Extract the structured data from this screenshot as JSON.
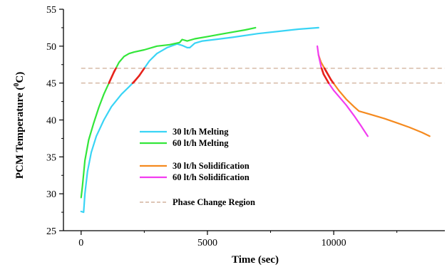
{
  "chart_data": {
    "type": "line",
    "title": "",
    "xlabel": "Time (sec)",
    "ylabel_parts": [
      "PCM Temperature (",
      "0",
      "C)"
    ],
    "xlim": [
      -700,
      14400
    ],
    "ylim": [
      25,
      55
    ],
    "x_ticks": [
      0,
      5000,
      10000
    ],
    "y_ticks": [
      25,
      30,
      35,
      40,
      45,
      50,
      55
    ],
    "grid": false,
    "legend_position": "center",
    "phase_change_region": [
      45,
      47
    ],
    "phase_change_color": "#c9a48a",
    "highlight_color": "#e8221b",
    "series": [
      {
        "name": "30 lt/h Melting",
        "color": "#39d4f5",
        "x": [
          0,
          100,
          150,
          250,
          400,
          600,
          900,
          1200,
          1600,
          1900,
          2100,
          2300,
          2500,
          2700,
          3000,
          3400,
          3800,
          4000,
          4200,
          4300,
          4500,
          4800,
          5300,
          6000,
          7000,
          7800,
          8600,
          9400
        ],
        "y": [
          27.6,
          27.5,
          30,
          33,
          35.6,
          37.8,
          40,
          41.8,
          43.5,
          44.5,
          45.2,
          46,
          47,
          48,
          49,
          49.8,
          50.3,
          50.1,
          49.8,
          49.8,
          50.4,
          50.7,
          50.9,
          51.2,
          51.7,
          52,
          52.3,
          52.5
        ]
      },
      {
        "name": "60 lt/h Melting",
        "color": "#33e63a",
        "x": [
          0,
          50,
          150,
          300,
          500,
          700,
          900,
          1100,
          1300,
          1500,
          1700,
          1900,
          2100,
          2500,
          3000,
          3500,
          3900,
          4000,
          4200,
          4500,
          5000,
          5500,
          6000,
          6500,
          6900
        ],
        "y": [
          29.5,
          31,
          34.5,
          37.3,
          39.6,
          41.7,
          43.5,
          45,
          46.5,
          47.8,
          48.6,
          49,
          49.2,
          49.5,
          50,
          50.2,
          50.5,
          50.9,
          50.7,
          51,
          51.3,
          51.6,
          51.9,
          52.2,
          52.5
        ]
      },
      {
        "name": "30 lt/h Solidification",
        "color": "#f58a1f",
        "x": [
          9400,
          9500,
          9700,
          9900,
          10200,
          10500,
          10800,
          11000,
          11200,
          11500,
          12000,
          12500,
          13000,
          13500,
          13800
        ],
        "y": [
          48.8,
          47.8,
          46.6,
          45.4,
          44,
          42.8,
          41.8,
          41.2,
          41,
          40.7,
          40.2,
          39.6,
          39,
          38.3,
          37.8
        ]
      },
      {
        "name": "60 lt/h Solidification",
        "color": "#f23cf0",
        "x": [
          9350,
          9400,
          9500,
          9600,
          9800,
          10000,
          10200,
          10500,
          10800,
          11100,
          11350
        ],
        "y": [
          50,
          48.8,
          47.2,
          46.2,
          45,
          44,
          43.2,
          42,
          40.6,
          39.1,
          37.8
        ]
      }
    ],
    "legend": {
      "series_labels": [
        "30 lt/h Melting",
        "60 lt/h Melting",
        "30 lt/h Solidification",
        "60 lt/h Solidification"
      ],
      "region_label": "Phase Change Region"
    }
  }
}
